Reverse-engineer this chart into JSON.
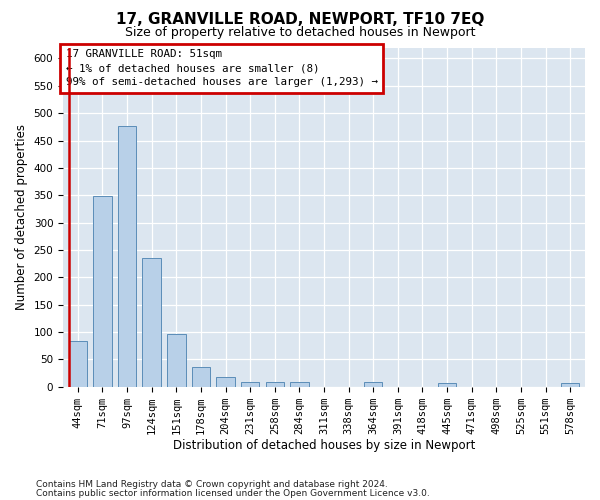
{
  "title": "17, GRANVILLE ROAD, NEWPORT, TF10 7EQ",
  "subtitle": "Size of property relative to detached houses in Newport",
  "xlabel": "Distribution of detached houses by size in Newport",
  "ylabel": "Number of detached properties",
  "categories": [
    "44sqm",
    "71sqm",
    "97sqm",
    "124sqm",
    "151sqm",
    "178sqm",
    "204sqm",
    "231sqm",
    "258sqm",
    "284sqm",
    "311sqm",
    "338sqm",
    "364sqm",
    "391sqm",
    "418sqm",
    "445sqm",
    "471sqm",
    "498sqm",
    "525sqm",
    "551sqm",
    "578sqm"
  ],
  "values": [
    83,
    348,
    477,
    235,
    96,
    36,
    17,
    8,
    8,
    8,
    0,
    0,
    8,
    0,
    0,
    7,
    0,
    0,
    0,
    0,
    6
  ],
  "bar_color": "#b8d0e8",
  "bar_edge_color": "#5b8db8",
  "highlight_color": "#cc0000",
  "annotation_text": "17 GRANVILLE ROAD: 51sqm\n← 1% of detached houses are smaller (8)\n99% of semi-detached houses are larger (1,293) →",
  "ylim": [
    0,
    620
  ],
  "yticks": [
    0,
    50,
    100,
    150,
    200,
    250,
    300,
    350,
    400,
    450,
    500,
    550,
    600
  ],
  "footer_line1": "Contains HM Land Registry data © Crown copyright and database right 2024.",
  "footer_line2": "Contains public sector information licensed under the Open Government Licence v3.0.",
  "fig_background_color": "#ffffff",
  "plot_background_color": "#dce6f0",
  "grid_color": "#ffffff"
}
